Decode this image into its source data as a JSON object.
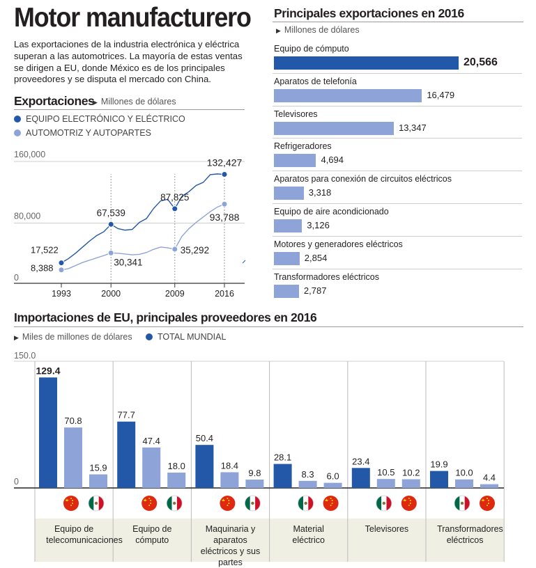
{
  "title": "Motor manufacturero",
  "intro": "Las exportaciones de la industria electrónica y eléctrica superan a las automotrices. La mayoría de estas ventas se dirigen a EU, donde México es de los principales proveedores y se disputa el mercado con China.",
  "colors": {
    "dark": "#2358a8",
    "light": "#8ea4d9",
    "band": "#f0efe3"
  },
  "chart_data": [
    {
      "type": "line",
      "title": "Exportaciones",
      "unit": "Millones de dólares",
      "legend": [
        "EQUIPO ELECTRÓNICO Y ELÉCTRICO",
        "AUTOMOTRIZ Y AUTOPARTES"
      ],
      "xlim": [
        1993,
        2016
      ],
      "x_ticks": [
        "1993",
        "2000",
        "2009",
        "2016"
      ],
      "y_ticks": [
        "160,000",
        "80,000",
        "0"
      ],
      "ylim": [
        0,
        160000
      ],
      "series": [
        {
          "name": "EQUIPO ELECTRÓNICO Y ELÉCTRICO",
          "x": [
            1993,
            1994,
            1995,
            1996,
            1997,
            1998,
            1999,
            2000,
            2001,
            2002,
            2003,
            2004,
            2005,
            2006,
            2007,
            2008,
            2009,
            2010,
            2011,
            2012,
            2013,
            2014,
            2015,
            2016
          ],
          "values": [
            17522,
            23000,
            30000,
            38000,
            46000,
            53000,
            58000,
            67539,
            62000,
            60000,
            61000,
            70000,
            75000,
            88000,
            98000,
            100000,
            87825,
            104000,
            110000,
            118000,
            122000,
            132000,
            133000,
            132427
          ],
          "labels": [
            {
              "x": 1993,
              "text": "17,522"
            },
            {
              "x": 2000,
              "text": "67,539"
            },
            {
              "x": 2009,
              "text": "87,825"
            },
            {
              "x": 2016,
              "text": "132,427"
            }
          ]
        },
        {
          "name": "AUTOMOTRIZ Y AUTOPARTES",
          "x": [
            1993,
            1994,
            1995,
            1996,
            1997,
            1998,
            1999,
            2000,
            2001,
            2002,
            2003,
            2004,
            2005,
            2006,
            2007,
            2008,
            2009,
            2010,
            2011,
            2012,
            2013,
            2014,
            2015,
            2016
          ],
          "values": [
            8388,
            10000,
            14000,
            18000,
            21000,
            24000,
            27000,
            30341,
            30000,
            29000,
            28000,
            28500,
            31000,
            35000,
            38000,
            37000,
            35292,
            52000,
            62000,
            70000,
            77000,
            84000,
            90000,
            93788
          ],
          "labels": [
            {
              "x": 1993,
              "text": "8,388"
            },
            {
              "x": 2000,
              "text": "30,341"
            },
            {
              "x": 2009,
              "text": "35,292"
            },
            {
              "x": 2016,
              "text": "93,788"
            }
          ]
        }
      ]
    },
    {
      "type": "bar",
      "orientation": "horizontal",
      "title": "Principales exportaciones en 2016",
      "unit": "Millones de dólares",
      "categories": [
        "Equipo de cómputo",
        "Aparatos de telefonía",
        "Televisores",
        "Refrigeradores",
        "Aparatos para conexión de circuitos eléctricos",
        "Equipo de aire acondicionado",
        "Motores y generadores eléctricos",
        "Transformadores eléctricos"
      ],
      "values": [
        20566,
        16479,
        13347,
        4694,
        3318,
        3126,
        2854,
        2787
      ],
      "value_labels": [
        "20,566",
        "16,479",
        "13,347",
        "4,694",
        "3,318",
        "3,126",
        "2,854",
        "2,787"
      ]
    },
    {
      "type": "bar",
      "title": "Importaciones de EU, principales proveedores en 2016",
      "unit": "Miles de millones de dólares",
      "legend": "TOTAL MUNDIAL",
      "y_ticks": [
        "150.0",
        "0"
      ],
      "ylim": [
        0,
        150
      ],
      "groups": [
        {
          "label": "Equipo de telecomunicaciones",
          "values": [
            129.4,
            70.8,
            15.9
          ],
          "labels": [
            "129.4",
            "70.8",
            "15.9"
          ],
          "flags": [
            "china",
            "mexico"
          ]
        },
        {
          "label": "Equipo de cómputo",
          "values": [
            77.7,
            47.4,
            18.0
          ],
          "labels": [
            "77.7",
            "47.4",
            "18.0"
          ],
          "flags": [
            "china",
            "mexico"
          ]
        },
        {
          "label": "Maquinaria y aparatos eléctricos y sus partes",
          "values": [
            50.4,
            18.4,
            9.8
          ],
          "labels": [
            "50.4",
            "18.4",
            "9.8"
          ],
          "flags": [
            "china",
            "mexico"
          ]
        },
        {
          "label": "Material eléctrico",
          "values": [
            28.1,
            8.3,
            6.0
          ],
          "labels": [
            "28.1",
            "8.3",
            "6.0"
          ],
          "flags": [
            "mexico",
            "china"
          ]
        },
        {
          "label": "Televisores",
          "values": [
            23.4,
            10.5,
            10.2
          ],
          "labels": [
            "23.4",
            "10.5",
            "10.2"
          ],
          "flags": [
            "mexico",
            "china"
          ]
        },
        {
          "label": "Transformadores eléctricos",
          "values": [
            19.9,
            10.0,
            4.4
          ],
          "labels": [
            "19.9",
            "10.0",
            "4.4"
          ],
          "flags": [
            "mexico",
            "china"
          ]
        }
      ]
    }
  ]
}
